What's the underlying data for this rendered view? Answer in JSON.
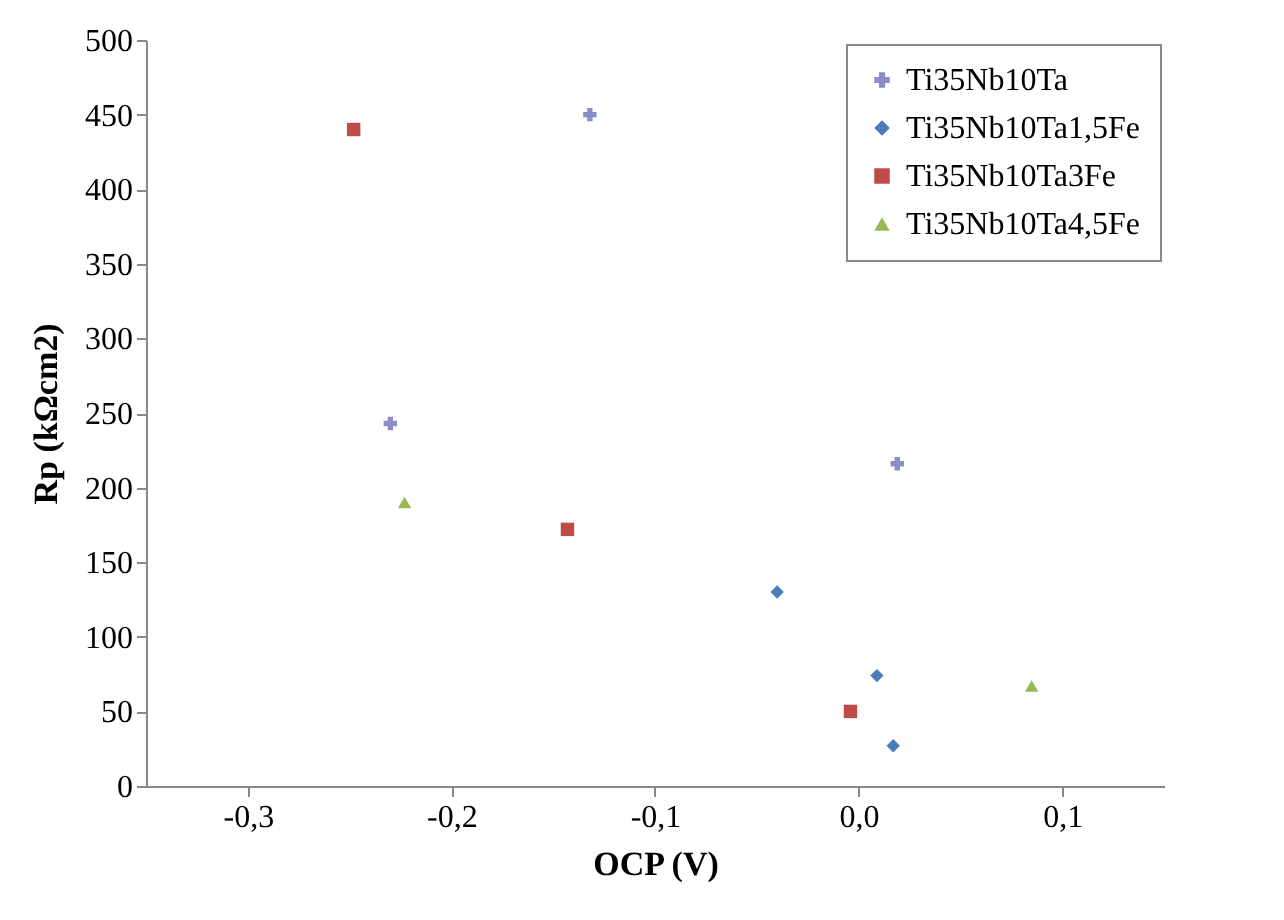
{
  "chart_data": {
    "type": "scatter",
    "xlabel": "OCP (V)",
    "ylabel": "Rp (kΩcm2)",
    "xlim": [
      -0.35,
      0.15
    ],
    "xticks": [
      {
        "value": -0.3,
        "label": "-0,3"
      },
      {
        "value": -0.2,
        "label": "-0,2"
      },
      {
        "value": -0.1,
        "label": "-0,1"
      },
      {
        "value": 0,
        "label": "0,0"
      },
      {
        "value": 0.1,
        "label": "0,1"
      }
    ],
    "ylim": [
      0,
      500
    ],
    "yticks": [
      0,
      50,
      100,
      150,
      200,
      250,
      300,
      350,
      400,
      450,
      500
    ],
    "grid": false,
    "legend": "top right",
    "series": [
      {
        "name": "Ti35Nb10Ta",
        "color": "#8c8cc8",
        "marker": "cross",
        "x": [
          -0.132,
          -0.23,
          0.019
        ],
        "values": [
          450,
          243,
          216
        ]
      },
      {
        "name": "Ti35Nb10Ta1,5Fe",
        "color": "#4a7ebb",
        "marker": "diamond",
        "x": [
          -0.04,
          0.009,
          0.017
        ],
        "values": [
          130,
          74,
          27
        ]
      },
      {
        "name": "Ti35Nb10Ta3Fe",
        "color": "#be4b48",
        "marker": "square",
        "x": [
          -0.248,
          -0.143,
          -0.004
        ],
        "values": [
          440,
          172,
          50
        ]
      },
      {
        "name": "Ti35Nb10Ta4,5Fe",
        "color": "#98b954",
        "marker": "triangle",
        "x": [
          -0.223,
          0.085
        ],
        "values": [
          190,
          67
        ]
      }
    ]
  }
}
